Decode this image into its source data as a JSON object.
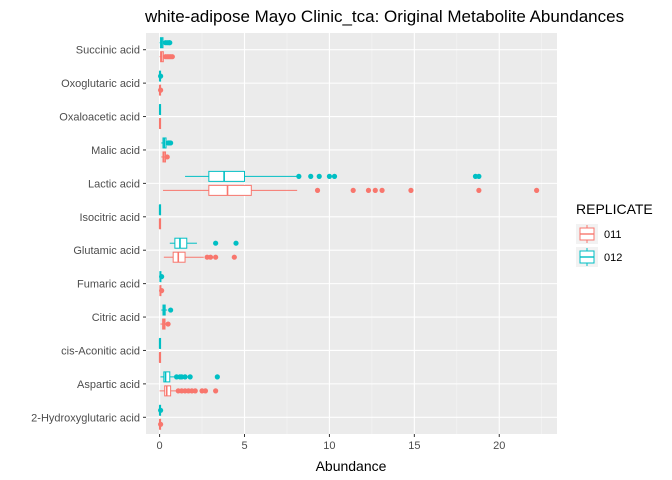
{
  "chart_data": {
    "type": "boxplot",
    "orientation": "horizontal",
    "title": "white-adipose Mayo Clinic_tca: Original Metabolite Abundances",
    "xlabel": "Abundance",
    "ylabel": "",
    "xlim": [
      -0.8,
      23.4
    ],
    "x_ticks": [
      0,
      5,
      10,
      15,
      20
    ],
    "grid": true,
    "legend": {
      "title": "REPLICATE",
      "placement": "right"
    },
    "series": [
      {
        "name": "011",
        "color": "#F8766D"
      },
      {
        "name": "012",
        "color": "#00BFC4"
      }
    ],
    "categories": [
      "Succinic acid",
      "Oxoglutaric acid",
      "Oxaloacetic acid",
      "Malic acid",
      "Lactic acid",
      "Isocitric acid",
      "Glutamic acid",
      "Fumaric acid",
      "Citric acid",
      "cis-Aconitic acid",
      "Aspartic acid",
      "2-Hydroxyglutaric acid"
    ],
    "boxes": [
      {
        "category": "Succinic acid",
        "series": "012",
        "min": 0.0,
        "q1": 0.05,
        "median": 0.12,
        "q3": 0.2,
        "max": 0.3,
        "outliers": [
          0.35,
          0.45,
          0.55,
          0.6
        ]
      },
      {
        "category": "Succinic acid",
        "series": "011",
        "min": 0.0,
        "q1": 0.06,
        "median": 0.12,
        "q3": 0.22,
        "max": 0.3,
        "outliers": [
          0.35,
          0.45,
          0.55,
          0.65,
          0.75
        ]
      },
      {
        "category": "Oxoglutaric acid",
        "series": "012",
        "min": -0.02,
        "q1": 0.0,
        "median": 0.01,
        "q3": 0.02,
        "max": 0.04,
        "outliers": [
          0.06
        ]
      },
      {
        "category": "Oxoglutaric acid",
        "series": "011",
        "min": -0.02,
        "q1": 0.0,
        "median": 0.01,
        "q3": 0.02,
        "max": 0.04,
        "outliers": [
          0.06
        ]
      },
      {
        "category": "Oxaloacetic acid",
        "series": "012",
        "min": 0.0,
        "q1": 0.0,
        "median": 0.01,
        "q3": 0.02,
        "max": 0.03,
        "outliers": []
      },
      {
        "category": "Oxaloacetic acid",
        "series": "011",
        "min": 0.0,
        "q1": 0.0,
        "median": 0.01,
        "q3": 0.02,
        "max": 0.03,
        "outliers": []
      },
      {
        "category": "Malic acid",
        "series": "012",
        "min": 0.1,
        "q1": 0.2,
        "median": 0.28,
        "q3": 0.38,
        "max": 0.45,
        "outliers": [
          0.5,
          0.55,
          0.6,
          0.65
        ]
      },
      {
        "category": "Malic acid",
        "series": "011",
        "min": 0.1,
        "q1": 0.2,
        "median": 0.26,
        "q3": 0.35,
        "max": 0.42,
        "outliers": [
          0.45
        ]
      },
      {
        "category": "Lactic acid",
        "series": "012",
        "min": 1.5,
        "q1": 2.9,
        "median": 3.8,
        "q3": 5.0,
        "max": 8.1,
        "outliers": [
          8.2,
          8.9,
          9.4,
          10.0,
          10.3,
          18.6,
          18.8
        ]
      },
      {
        "category": "Lactic acid",
        "series": "011",
        "min": 0.2,
        "q1": 2.9,
        "median": 4.0,
        "q3": 5.4,
        "max": 8.1,
        "outliers": [
          9.3,
          11.4,
          12.3,
          12.7,
          13.1,
          14.8,
          18.8,
          22.2
        ]
      },
      {
        "category": "Isocitric acid",
        "series": "012",
        "min": 0.0,
        "q1": 0.0,
        "median": 0.005,
        "q3": 0.01,
        "max": 0.02,
        "outliers": []
      },
      {
        "category": "Isocitric acid",
        "series": "011",
        "min": 0.0,
        "q1": 0.0,
        "median": 0.005,
        "q3": 0.01,
        "max": 0.02,
        "outliers": []
      },
      {
        "category": "Glutamic acid",
        "series": "012",
        "min": 0.6,
        "q1": 0.9,
        "median": 1.2,
        "q3": 1.6,
        "max": 2.2,
        "outliers": [
          3.3,
          4.5
        ]
      },
      {
        "category": "Glutamic acid",
        "series": "011",
        "min": 0.25,
        "q1": 0.8,
        "median": 1.1,
        "q3": 1.5,
        "max": 2.6,
        "outliers": [
          2.8,
          3.0,
          3.3,
          4.4
        ]
      },
      {
        "category": "Fumaric acid",
        "series": "012",
        "min": 0.0,
        "q1": 0.02,
        "median": 0.04,
        "q3": 0.06,
        "max": 0.1,
        "outliers": [
          0.12
        ]
      },
      {
        "category": "Fumaric acid",
        "series": "011",
        "min": 0.0,
        "q1": 0.02,
        "median": 0.04,
        "q3": 0.06,
        "max": 0.1,
        "outliers": [
          0.12
        ]
      },
      {
        "category": "Citric acid",
        "series": "012",
        "min": 0.1,
        "q1": 0.2,
        "median": 0.27,
        "q3": 0.33,
        "max": 0.45,
        "outliers": [
          0.65
        ]
      },
      {
        "category": "Citric acid",
        "series": "011",
        "min": 0.05,
        "q1": 0.18,
        "median": 0.25,
        "q3": 0.32,
        "max": 0.45,
        "outliers": [
          0.5
        ]
      },
      {
        "category": "cis-Aconitic acid",
        "series": "012",
        "min": 0.0,
        "q1": 0.0,
        "median": 0.005,
        "q3": 0.01,
        "max": 0.02,
        "outliers": []
      },
      {
        "category": "cis-Aconitic acid",
        "series": "011",
        "min": 0.0,
        "q1": 0.0,
        "median": 0.005,
        "q3": 0.01,
        "max": 0.02,
        "outliers": []
      },
      {
        "category": "Aspartic acid",
        "series": "012",
        "min": 0.05,
        "q1": 0.25,
        "median": 0.35,
        "q3": 0.6,
        "max": 0.9,
        "outliers": [
          1.0,
          1.2,
          1.3,
          1.5,
          1.8,
          3.4
        ]
      },
      {
        "category": "Aspartic acid",
        "series": "011",
        "min": 0.0,
        "q1": 0.3,
        "median": 0.42,
        "q3": 0.65,
        "max": 1.0,
        "outliers": [
          1.1,
          1.3,
          1.5,
          1.7,
          1.9,
          2.1,
          2.5,
          2.7,
          3.3
        ]
      },
      {
        "category": "2-Hydroxyglutaric acid",
        "series": "012",
        "min": -0.02,
        "q1": 0.0,
        "median": 0.01,
        "q3": 0.03,
        "max": 0.05,
        "outliers": [
          0.06
        ]
      },
      {
        "category": "2-Hydroxyglutaric acid",
        "series": "011",
        "min": -0.02,
        "q1": 0.0,
        "median": 0.01,
        "q3": 0.03,
        "max": 0.05,
        "outliers": [
          0.06
        ]
      }
    ]
  }
}
